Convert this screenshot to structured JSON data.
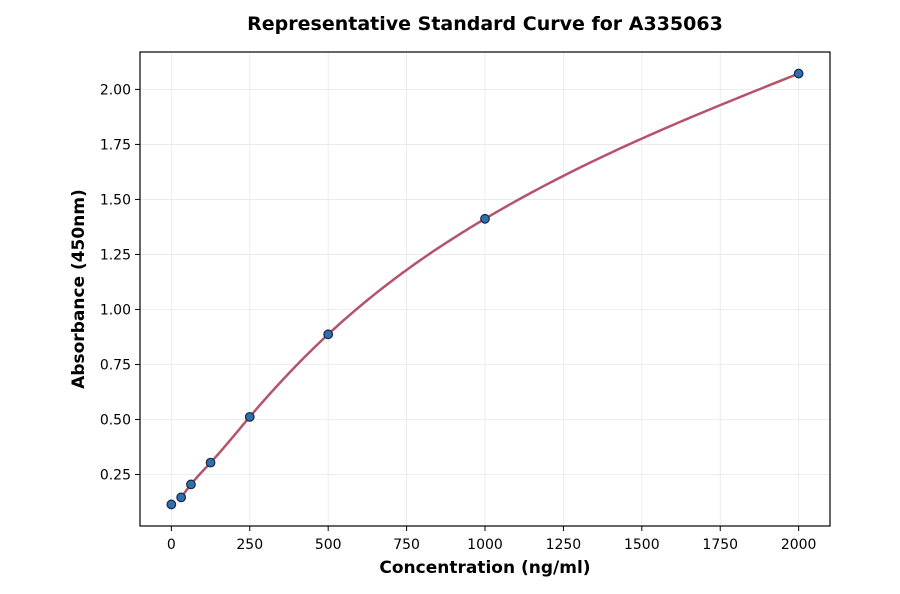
{
  "chart_data": {
    "type": "scatter",
    "title": "Representative Standard Curve for A335063",
    "xlabel": "Concentration (ng/ml)",
    "ylabel": "Absorbance (450nm)",
    "xlim": [
      -100,
      2100
    ],
    "ylim": [
      0.016,
      2.17
    ],
    "xticks": [
      0,
      250,
      500,
      750,
      1000,
      1250,
      1500,
      1750,
      2000
    ],
    "yticks": [
      0.25,
      0.5,
      0.75,
      1.0,
      1.25,
      1.5,
      1.75,
      2.0
    ],
    "xtick_labels": [
      "0",
      "250",
      "500",
      "750",
      "1000",
      "1250",
      "1500",
      "1750",
      "2000"
    ],
    "ytick_labels": [
      "0.25",
      "0.50",
      "0.75",
      "1.00",
      "1.25",
      "1.50",
      "1.75",
      "2.00"
    ],
    "grid": true,
    "points": {
      "x": [
        0,
        31.25,
        62.5,
        125,
        250,
        500,
        1000,
        2000
      ],
      "y": [
        0.114,
        0.146,
        0.205,
        0.304,
        0.512,
        0.887,
        1.412,
        2.072
      ]
    },
    "fit_curve": {
      "x_range": [
        31.25,
        2000
      ]
    },
    "colors": {
      "points": "#2f6fae",
      "point_edge": "#1a2a44",
      "curve": "#b5536a",
      "grid": "#e8e8e8"
    }
  }
}
